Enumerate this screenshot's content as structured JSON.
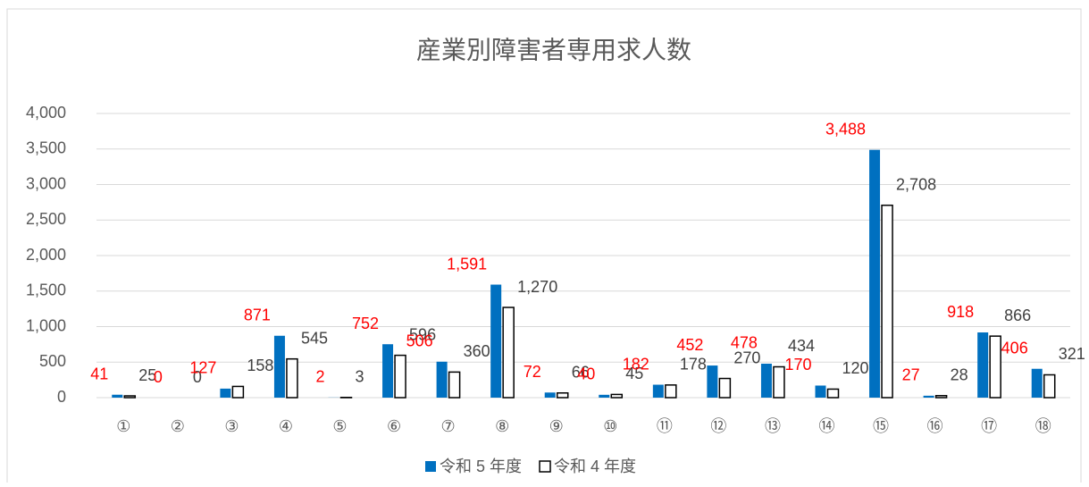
{
  "chart_data": {
    "type": "bar",
    "title": "産業別障害者専用求人数",
    "categories": [
      "①",
      "②",
      "③",
      "④",
      "⑤",
      "⑥",
      "⑦",
      "⑧",
      "⑨",
      "⑩",
      "⑪",
      "⑫",
      "⑬",
      "⑭",
      "⑮",
      "⑯",
      "⑰",
      "⑱"
    ],
    "series": [
      {
        "name": "令和 5 年度",
        "color": "#0070c0",
        "label_color": "#ff0000",
        "values": [
          41,
          0,
          127,
          871,
          2,
          752,
          506,
          1591,
          72,
          40,
          182,
          452,
          478,
          170,
          3488,
          27,
          918,
          406
        ],
        "value_labels": [
          "41",
          "0",
          "127",
          "871",
          "2",
          "752",
          "506",
          "1,591",
          "72",
          "40",
          "182",
          "452",
          "478",
          "170",
          "3,488",
          "27",
          "918",
          "406"
        ]
      },
      {
        "name": "令和 4 年度",
        "color": "#ffffff",
        "label_color": "#404040",
        "values": [
          25,
          0,
          158,
          545,
          3,
          596,
          360,
          1270,
          66,
          45,
          178,
          270,
          434,
          120,
          2708,
          28,
          866,
          321
        ],
        "value_labels": [
          "25",
          "0",
          "158",
          "545",
          "3",
          "596",
          "360",
          "1,270",
          "66",
          "45",
          "178",
          "270",
          "434",
          "120",
          "2,708",
          "28",
          "866",
          "321"
        ]
      }
    ],
    "ylim": [
      0,
      4000
    ],
    "yticks": [
      0,
      500,
      {
        "value": 1000,
        "label": "1,000"
      },
      {
        "value": 1500,
        "label": "1,500"
      },
      {
        "value": 2000,
        "label": "2,000"
      },
      {
        "value": 2500,
        "label": "2,500"
      },
      {
        "value": 3000,
        "label": "3,000"
      },
      {
        "value": 3500,
        "label": "3,500"
      },
      {
        "value": 4000,
        "label": "4,000"
      }
    ],
    "grid": true,
    "legend": "bottom"
  }
}
